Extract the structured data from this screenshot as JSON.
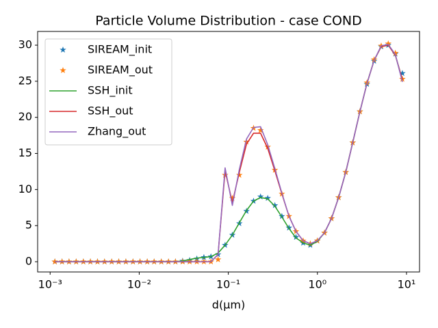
{
  "chart_data": {
    "type": "line",
    "title": "Particle Volume Distribution - case COND",
    "x_label": "d(μm)",
    "xscale": "log",
    "x": [
      0.00113,
      0.00136,
      0.00163,
      0.00196,
      0.00236,
      0.00283,
      0.0034,
      0.00408,
      0.00491,
      0.00589,
      0.00708,
      0.00851,
      0.0102,
      0.0123,
      0.0147,
      0.0177,
      0.0213,
      0.0255,
      0.0307,
      0.0368,
      0.0443,
      0.0532,
      0.0638,
      0.0767,
      0.092,
      0.111,
      0.133,
      0.16,
      0.192,
      0.23,
      0.277,
      0.333,
      0.399,
      0.48,
      0.575,
      0.692,
      0.832,
      0.998,
      1.2,
      1.44,
      1.73,
      2.08,
      2.49,
      3.0,
      3.6,
      4.33,
      5.2,
      6.24,
      7.5,
      8.99
    ],
    "series": [
      {
        "name": "SIREAM_init",
        "color": "#1f77b4",
        "marker": "*",
        "values": [
          0,
          0,
          0,
          0,
          0,
          0,
          0,
          0,
          0,
          0,
          0,
          0,
          0,
          0,
          0,
          0,
          0,
          0,
          0.1,
          0.2,
          0.4,
          0.6,
          0.7,
          1.0,
          2.3,
          3.7,
          5.3,
          7.0,
          8.4,
          9.0,
          8.8,
          7.8,
          6.3,
          4.7,
          3.4,
          2.6,
          2.3,
          2.9,
          4.0,
          6.0,
          8.9,
          12.4,
          16.5,
          20.8,
          24.6,
          27.8,
          29.8,
          30.0,
          28.8,
          26.1
        ]
      },
      {
        "name": "SIREAM_out",
        "color": "#ff7f0e",
        "marker": "*",
        "values": [
          0,
          0,
          0,
          0,
          0,
          0,
          0,
          0,
          0,
          0,
          0,
          0,
          0,
          0,
          0,
          0,
          0,
          0,
          0,
          0,
          0,
          0,
          0,
          0.3,
          12.0,
          8.8,
          12.0,
          16.6,
          18.5,
          18.2,
          15.9,
          12.7,
          9.4,
          6.3,
          4.2,
          2.9,
          2.5,
          2.9,
          4.0,
          6.0,
          8.9,
          12.4,
          16.5,
          20.8,
          24.8,
          28.0,
          29.9,
          30.2,
          28.9,
          25.3
        ]
      },
      {
        "name": "SSH_init",
        "color": "#2ca02c",
        "linestyle": "-",
        "values": [
          0,
          0,
          0,
          0,
          0,
          0,
          0,
          0,
          0,
          0,
          0,
          0,
          0,
          0,
          0,
          0,
          0,
          0,
          0.1,
          0.3,
          0.5,
          0.6,
          0.7,
          1.2,
          2.3,
          3.7,
          5.4,
          7.1,
          8.4,
          8.9,
          8.7,
          7.7,
          6.2,
          4.6,
          3.3,
          2.6,
          2.3,
          2.8,
          4.0,
          6.0,
          8.9,
          12.4,
          16.5,
          20.8,
          24.7,
          27.9,
          29.8,
          30.0,
          28.6,
          25.2
        ]
      },
      {
        "name": "SSH_out",
        "color": "#d62728",
        "linestyle": "-",
        "values": [
          0,
          0,
          0,
          0,
          0,
          0,
          0,
          0,
          0,
          0,
          0,
          0,
          0,
          0,
          0,
          0,
          0,
          0,
          0,
          0,
          0,
          0,
          0,
          1.0,
          12.6,
          8.2,
          12.4,
          16.3,
          17.8,
          17.8,
          15.7,
          12.6,
          9.4,
          6.3,
          4.2,
          2.9,
          2.5,
          2.9,
          4.0,
          6.0,
          8.9,
          12.4,
          16.5,
          20.8,
          24.7,
          27.9,
          29.8,
          30.0,
          28.6,
          25.2
        ]
      },
      {
        "name": "Zhang_out",
        "color": "#9467bd",
        "linestyle": "-",
        "values": [
          0,
          0,
          0,
          0,
          0,
          0,
          0,
          0,
          0,
          0,
          0,
          0,
          0,
          0,
          0,
          0,
          0,
          0,
          0,
          0,
          0,
          0,
          0,
          1.0,
          13.0,
          7.8,
          12.8,
          17.0,
          18.6,
          18.7,
          16.2,
          12.9,
          9.5,
          6.3,
          4.2,
          2.9,
          2.5,
          2.9,
          4.0,
          6.0,
          8.9,
          12.4,
          16.5,
          20.8,
          24.7,
          27.9,
          29.9,
          30.1,
          28.7,
          24.9
        ]
      }
    ],
    "xlim": [
      0.000724,
      14.0
    ],
    "xticks": [
      {
        "value": 0.001,
        "label": "10⁻³"
      },
      {
        "value": 0.01,
        "label": "10⁻²"
      },
      {
        "value": 0.1,
        "label": "10⁻¹"
      },
      {
        "value": 1,
        "label": "10⁰"
      },
      {
        "value": 10,
        "label": "10¹"
      }
    ],
    "ylim": [
      -1.42,
      31.9
    ],
    "yticks": [
      0,
      5,
      10,
      15,
      20,
      25,
      30
    ],
    "legend": "upper left"
  }
}
